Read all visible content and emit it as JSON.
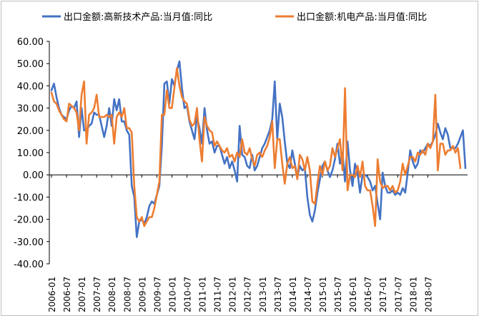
{
  "chart_data": {
    "type": "line",
    "title": "",
    "xlabel": "",
    "ylabel": "",
    "ylim": [
      -40,
      60
    ],
    "y_ticks": [
      "60.00",
      "50.00",
      "40.00",
      "30.00",
      "20.00",
      "10.00",
      "0.00",
      "-10.00",
      "-20.00",
      "-30.00",
      "-40.00"
    ],
    "x_tick_labels": [
      "2006-01",
      "2006-07",
      "2007-01",
      "2007-07",
      "2008-01",
      "2008-07",
      "2009-01",
      "2009-07",
      "2010-01",
      "2010-07",
      "2011-01",
      "2011-07",
      "2012-01",
      "2012-07",
      "2013-01",
      "2013-07",
      "2014-01",
      "2014-07",
      "2015-01",
      "2015-07",
      "2016-01",
      "2016-07",
      "2017-01",
      "2017-07",
      "2018-01",
      "2018-07"
    ],
    "legend_position": "top",
    "grid": false,
    "x_start": "2006-01",
    "x_end": "2018-12",
    "series": [
      {
        "name": "出口金额:高新技术产品:当月值:同比",
        "color": "#4472C4",
        "values": [
          38,
          41,
          35,
          30,
          27,
          26,
          25,
          29,
          31,
          30,
          33,
          17,
          30,
          20,
          20,
          22,
          23,
          28,
          27,
          27,
          22,
          17,
          22,
          30,
          22,
          34,
          29,
          34,
          24,
          24,
          20,
          18,
          -5,
          -10,
          -28,
          -21,
          -20,
          -22,
          -19,
          -14,
          -12,
          -13,
          -9,
          -5,
          13,
          41,
          42,
          32,
          43,
          40,
          47,
          51,
          39,
          30,
          31,
          24,
          20,
          16,
          26,
          21,
          14,
          30,
          20,
          14,
          15,
          10,
          13,
          13,
          9,
          5,
          8,
          3,
          6,
          2,
          -3,
          22,
          9,
          8,
          4,
          3,
          9,
          2,
          4,
          8,
          12,
          14,
          17,
          20,
          25,
          42,
          16,
          32,
          26,
          15,
          5,
          3,
          11,
          5,
          -1,
          4,
          2,
          3,
          -10,
          -18,
          -21,
          -16,
          -8,
          -2,
          4,
          6,
          2,
          -1,
          2,
          7,
          14,
          5,
          10,
          -3,
          15,
          2,
          -5,
          5,
          1,
          -8,
          0,
          0,
          -1,
          -3,
          -7,
          -5,
          -13,
          -20,
          1,
          -5,
          -8,
          -8,
          -7,
          -9,
          -8,
          -9,
          -6,
          -8,
          1,
          11,
          6,
          3,
          5,
          11,
          10,
          12,
          14,
          13,
          15,
          18,
          23,
          19,
          16,
          21,
          18,
          12,
          12,
          12,
          14,
          17,
          20,
          3
        ]
      },
      {
        "name": "出口金额:机电产品:当月值:同比",
        "color": "#ED7D31",
        "values": [
          37,
          33,
          32,
          29,
          27,
          25,
          24,
          32,
          31,
          30,
          28,
          20,
          36,
          42,
          14,
          27,
          28,
          30,
          36,
          26,
          26,
          26,
          27,
          26,
          27,
          14,
          26,
          28,
          26,
          30,
          21,
          21,
          19,
          -5,
          -19,
          -21,
          -19,
          -23,
          -21,
          -19,
          -19,
          -15,
          -9,
          -3,
          27,
          27,
          38,
          30,
          30,
          39,
          48,
          40,
          35,
          33,
          32,
          25,
          22,
          23,
          30,
          16,
          6,
          26,
          22,
          20,
          19,
          13,
          15,
          13,
          11,
          10,
          12,
          8,
          9,
          6,
          10,
          8,
          16,
          10,
          9,
          12,
          7,
          4,
          9,
          10,
          8,
          11,
          13,
          17,
          24,
          3,
          16,
          16,
          5,
          -4,
          5,
          8,
          3,
          4,
          -2,
          9,
          7,
          2,
          8,
          2,
          -12,
          -13,
          -4,
          4,
          0,
          6,
          2,
          4,
          12,
          8,
          12,
          16,
          2,
          39,
          -7,
          0,
          0,
          -1,
          4,
          -1,
          6,
          -5,
          -7,
          -7,
          -14,
          -23,
          7,
          -3,
          -6,
          -5,
          -5,
          -7,
          -5,
          -8,
          -7,
          -3,
          5,
          0,
          4,
          8,
          8,
          6,
          10,
          9,
          11,
          9,
          14,
          12,
          15,
          36,
          2,
          14,
          14,
          9,
          11,
          11,
          13,
          10,
          12,
          3
        ]
      }
    ]
  }
}
